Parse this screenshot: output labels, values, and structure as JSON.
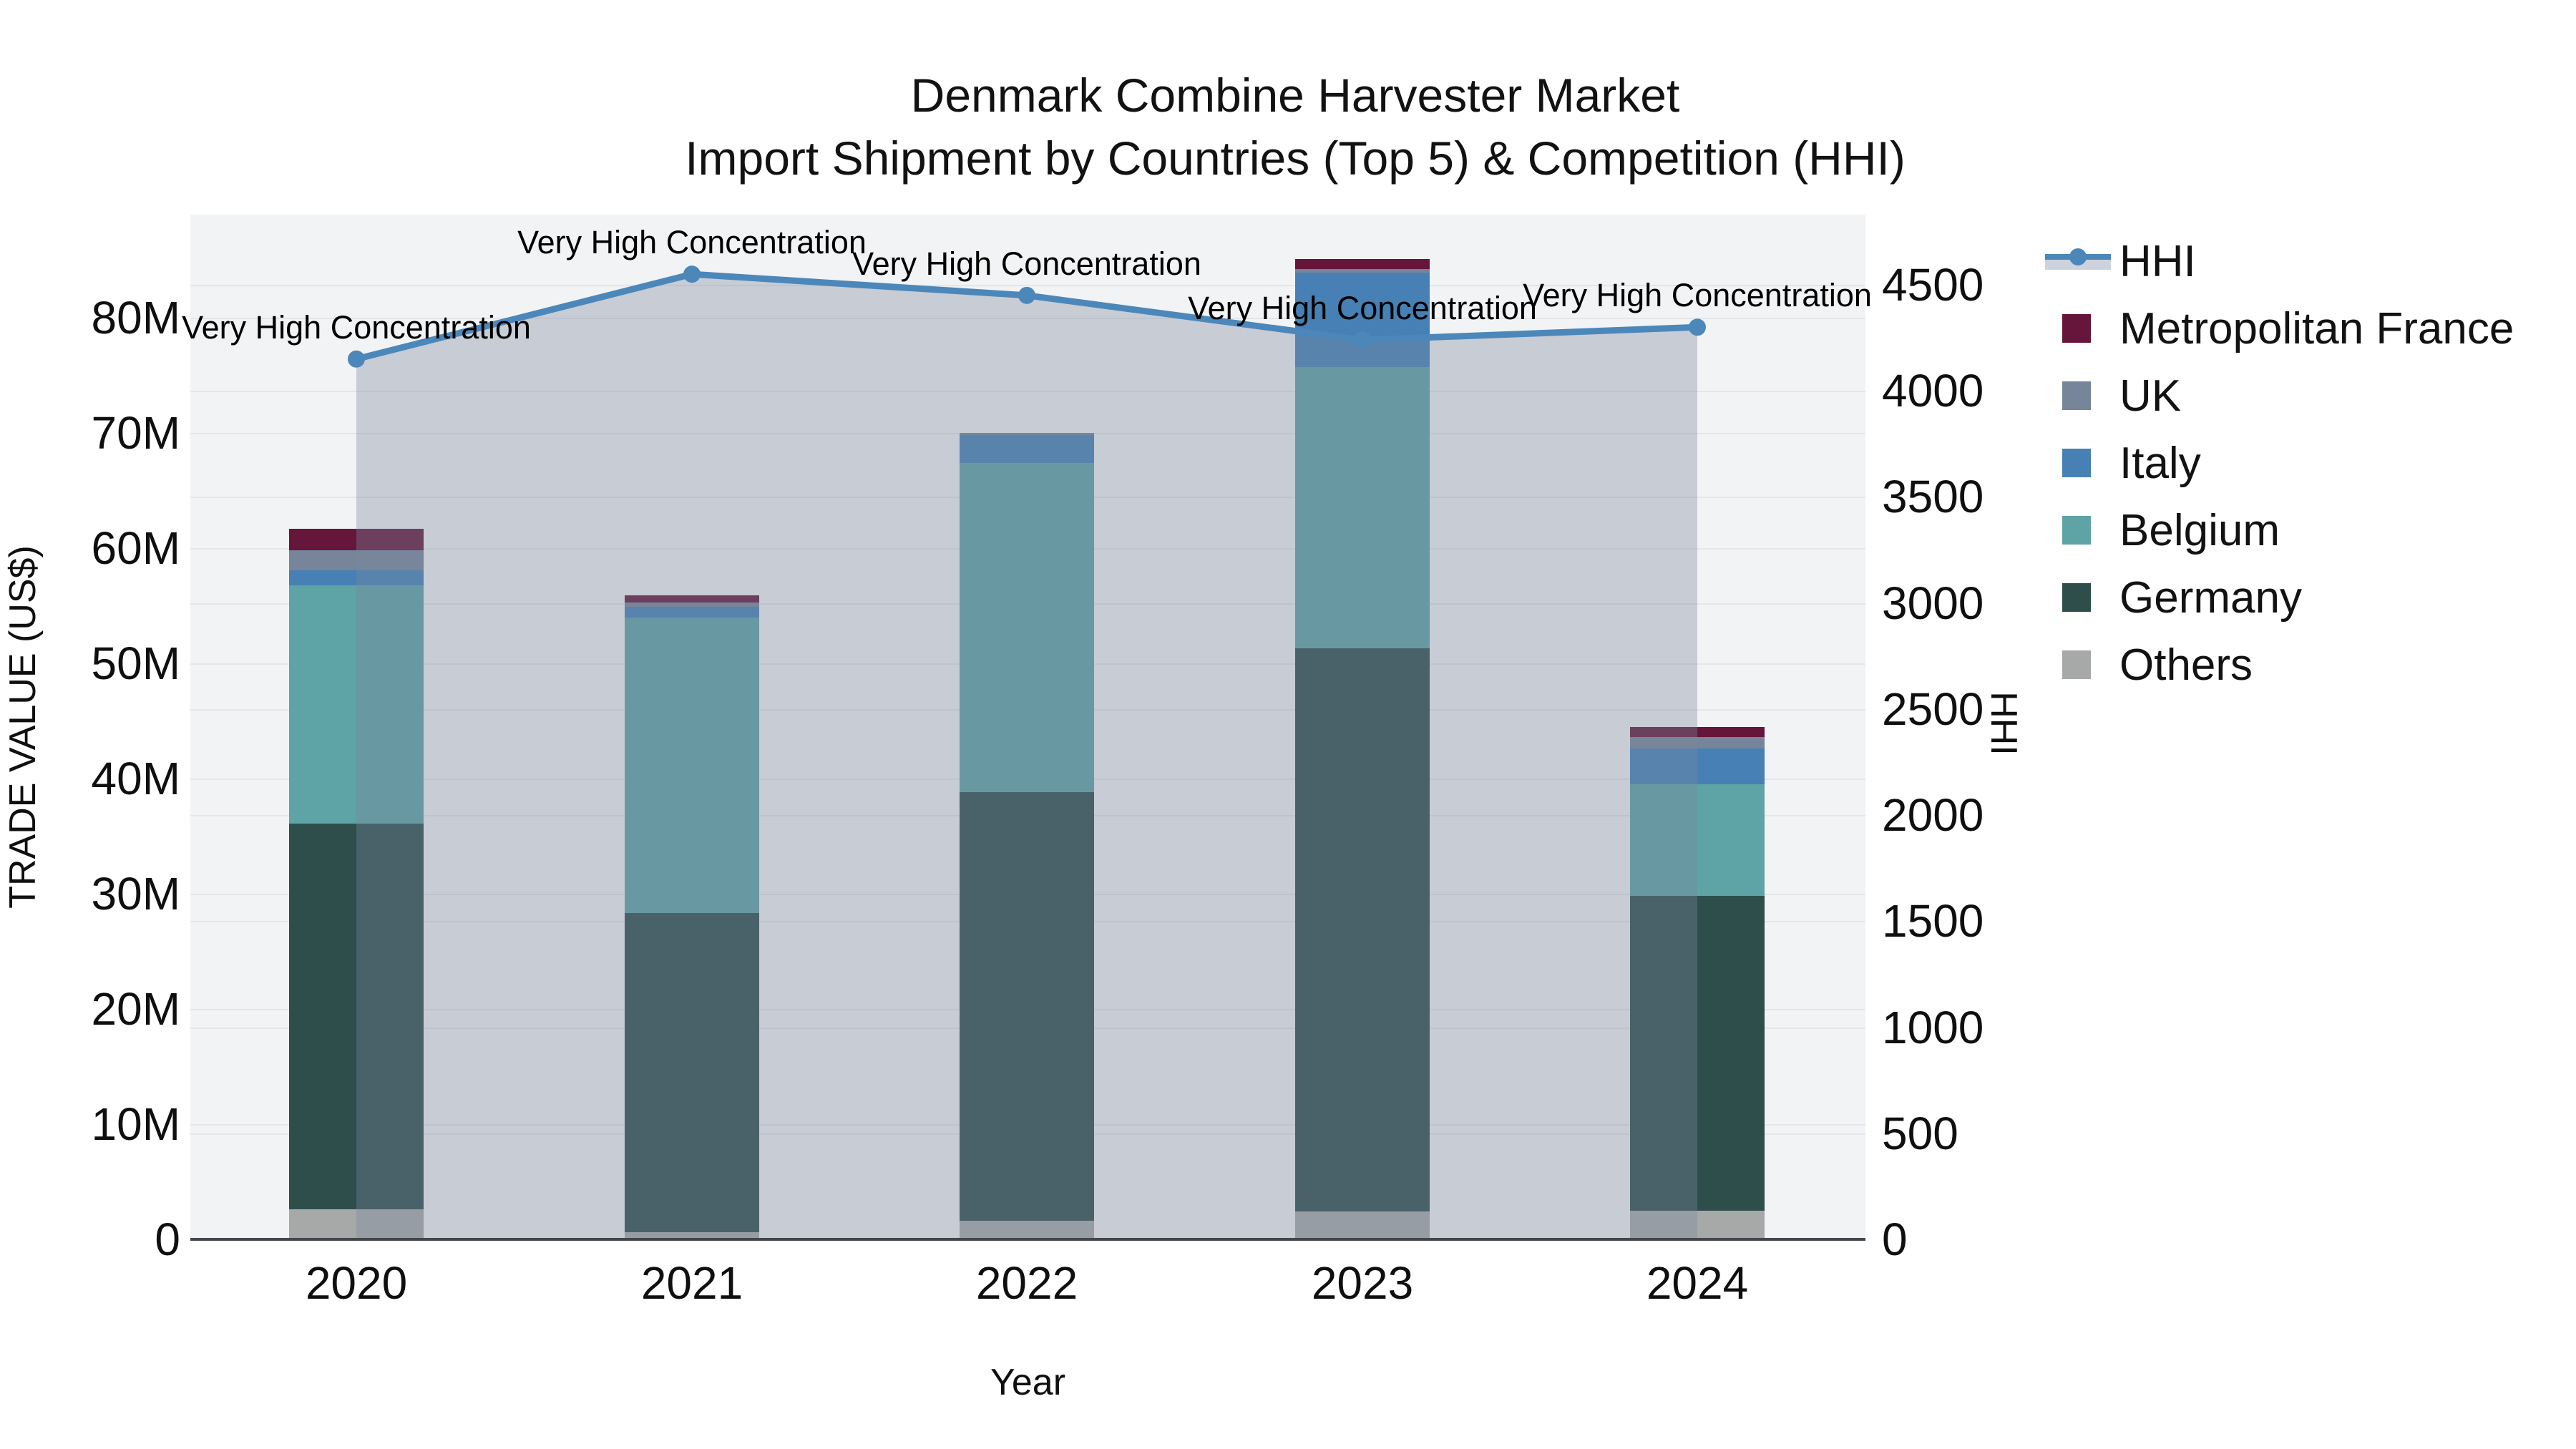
{
  "title": {
    "line1": "Denmark Combine Harvester Market",
    "line2": "Import Shipment by Countries (Top 5) & Competition (HHI)"
  },
  "axes": {
    "x_title": "Year",
    "left_title": "TRADE VALUE (US$)",
    "right_title": "HHI",
    "left_ticks": [
      {
        "v": 0,
        "label": "0"
      },
      {
        "v": 10,
        "label": "10M"
      },
      {
        "v": 20,
        "label": "20M"
      },
      {
        "v": 30,
        "label": "30M"
      },
      {
        "v": 40,
        "label": "40M"
      },
      {
        "v": 50,
        "label": "50M"
      },
      {
        "v": 60,
        "label": "60M"
      },
      {
        "v": 70,
        "label": "70M"
      },
      {
        "v": 80,
        "label": "80M"
      }
    ],
    "right_ticks": [
      {
        "v": 0,
        "label": "0"
      },
      {
        "v": 500,
        "label": "500"
      },
      {
        "v": 1000,
        "label": "1000"
      },
      {
        "v": 1500,
        "label": "1500"
      },
      {
        "v": 2000,
        "label": "2000"
      },
      {
        "v": 2500,
        "label": "2500"
      },
      {
        "v": 3000,
        "label": "3000"
      },
      {
        "v": 3500,
        "label": "3500"
      },
      {
        "v": 4000,
        "label": "4000"
      },
      {
        "v": 4500,
        "label": "4500"
      }
    ]
  },
  "legend": {
    "items": [
      {
        "label": "HHI",
        "type": "line",
        "color": "#4c87ba",
        "band": "#ccd3dc"
      },
      {
        "label": "Metropolitan France",
        "type": "swatch",
        "color": "#65163a"
      },
      {
        "label": "UK",
        "type": "swatch",
        "color": "#76859a"
      },
      {
        "label": "Italy",
        "type": "swatch",
        "color": "#4680b4"
      },
      {
        "label": "Belgium",
        "type": "swatch",
        "color": "#5ea3a5"
      },
      {
        "label": "Germany",
        "type": "swatch",
        "color": "#2e4e4c"
      },
      {
        "label": "Others",
        "type": "swatch",
        "color": "#a7a9a8"
      }
    ]
  },
  "annotation_text": "Very High Concentration",
  "chart_data": {
    "type": "bar+line",
    "title": "Denmark Combine Harvester Market — Import Shipment by Countries (Top 5) & Competition (HHI)",
    "xlabel": "Year",
    "ylabel_left": "TRADE VALUE (US$)",
    "ylabel_right": "HHI",
    "unit_left": "US$ millions",
    "ylim_left": [
      0,
      80
    ],
    "ylim_right": [
      0,
      4500
    ],
    "grid": true,
    "legend_position": "right",
    "categories": [
      "2020",
      "2021",
      "2022",
      "2023",
      "2024"
    ],
    "stack_order_bottom_to_top": [
      "Others",
      "Germany",
      "Belgium",
      "Italy",
      "UK",
      "Metropolitan France"
    ],
    "series": [
      {
        "name": "Others",
        "values": [
          2.6,
          0.6,
          1.6,
          2.4,
          2.5
        ]
      },
      {
        "name": "Germany",
        "values": [
          33.5,
          27.7,
          37.2,
          48.9,
          27.3
        ]
      },
      {
        "name": "Belgium",
        "values": [
          20.7,
          25.7,
          28.6,
          24.4,
          9.7
        ]
      },
      {
        "name": "Italy",
        "values": [
          1.3,
          0.9,
          2.4,
          8.2,
          3.1
        ]
      },
      {
        "name": "UK",
        "values": [
          1.7,
          0.4,
          0.2,
          0.3,
          1.0
        ]
      },
      {
        "name": "Metropolitan France",
        "values": [
          1.9,
          0.6,
          0.0,
          0.9,
          0.9
        ]
      }
    ],
    "bar_totals": [
      61.7,
      55.9,
      70.0,
      85.1,
      44.5
    ],
    "hhi_series": {
      "name": "HHI",
      "values": [
        4150,
        4550,
        4450,
        4240,
        4300
      ],
      "point_annotations": [
        "Very High Concentration",
        "Very High Concentration",
        "Very High Concentration",
        "Very High Concentration",
        "Very High Concentration"
      ]
    },
    "hhi_area_fill": "rgba(123,135,158,0.36)",
    "hhi_line_color": "#4c87ba"
  }
}
